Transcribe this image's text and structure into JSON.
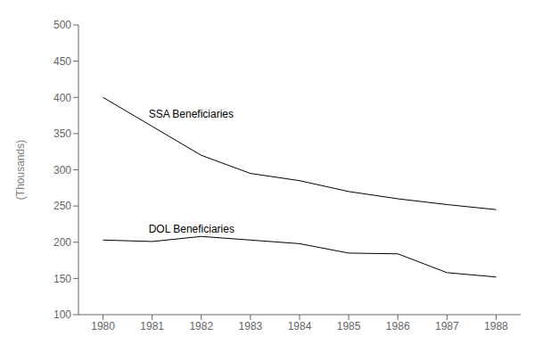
{
  "chart_data": {
    "type": "line",
    "x": [
      1980,
      1981,
      1982,
      1983,
      1984,
      1985,
      1986,
      1987,
      1988
    ],
    "series": [
      {
        "name": "SSA Beneficiaries",
        "color": "#000000",
        "values": [
          400,
          360,
          320,
          295,
          285,
          270,
          260,
          252,
          245
        ]
      },
      {
        "name": "DOL Beneficiaries",
        "color": "#000000",
        "values": [
          203,
          201,
          208,
          203,
          198,
          185,
          184,
          158,
          152
        ]
      }
    ],
    "y_label": "(Thousands)",
    "xlim": [
      1979.5,
      1988.5
    ],
    "xticks": [
      1980,
      1981,
      1982,
      1983,
      1984,
      1985,
      1986,
      1987,
      1988
    ],
    "ylim": [
      100,
      500
    ],
    "yticks": [
      100,
      150,
      200,
      250,
      300,
      350,
      400,
      450,
      500
    ],
    "grid": false
  }
}
